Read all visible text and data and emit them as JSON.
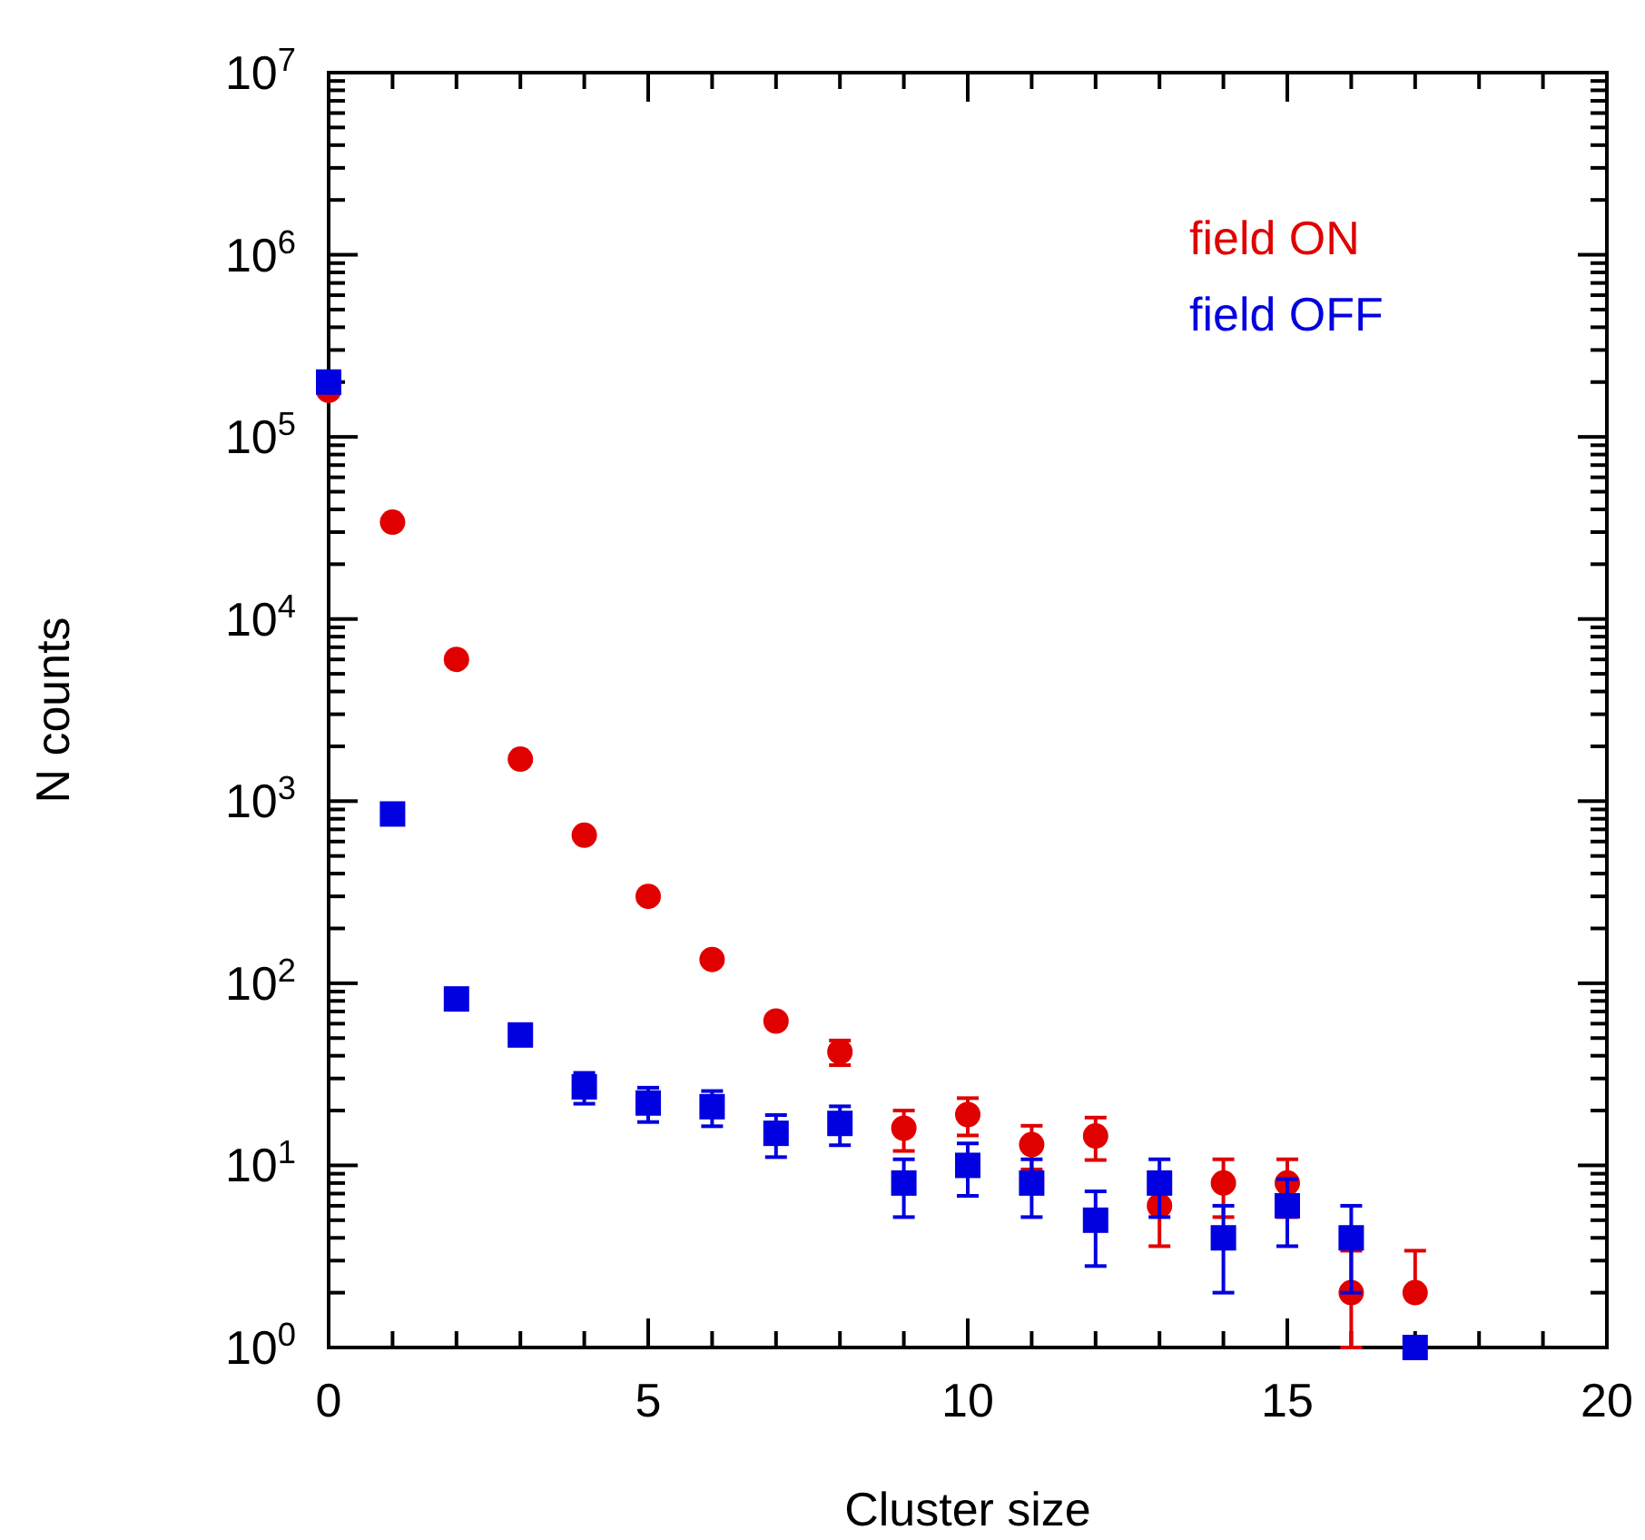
{
  "chart_data": {
    "type": "scatter",
    "xlabel": "Cluster size",
    "ylabel": "N counts",
    "log": "y",
    "legend": "top right",
    "grid": false,
    "xlim": [
      0,
      20
    ],
    "xticks": [
      0,
      {
        "value": 1,
        "label": null
      },
      {
        "value": 2,
        "label": null
      },
      {
        "value": 3,
        "label": null
      },
      {
        "value": 4,
        "label": null
      },
      5,
      {
        "value": 6,
        "label": null
      },
      {
        "value": 7,
        "label": null
      },
      {
        "value": 8,
        "label": null
      },
      {
        "value": 9,
        "label": null
      },
      10,
      {
        "value": 11,
        "label": null
      },
      {
        "value": 12,
        "label": null
      },
      {
        "value": 13,
        "label": null
      },
      {
        "value": 14,
        "label": null
      },
      15,
      {
        "value": 16,
        "label": null
      },
      {
        "value": 17,
        "label": null
      },
      {
        "value": 18,
        "label": null
      },
      {
        "value": 19,
        "label": null
      },
      20
    ],
    "ylim": [
      1,
      10000000
    ],
    "yticks": [
      {
        "value": 1,
        "label": "10$^{0}$"
      },
      {
        "value": 10,
        "label": "10$^{1}$"
      },
      {
        "value": 100,
        "label": "10$^{2}$"
      },
      {
        "value": 1000,
        "label": "10$^{3}$"
      },
      {
        "value": 10000,
        "label": "10$^{4}$"
      },
      {
        "value": 100000,
        "label": "10$^{5}$"
      },
      {
        "value": 1000000,
        "label": "10$^{6}$"
      },
      {
        "value": 10000000,
        "label": "10$^{7}$"
      },
      {
        "value": 2,
        "label": null
      },
      {
        "value": 3,
        "label": null
      },
      {
        "value": 4,
        "label": null
      },
      {
        "value": 5,
        "label": null
      },
      {
        "value": 6,
        "label": null
      },
      {
        "value": 7,
        "label": null
      },
      {
        "value": 8,
        "label": null
      },
      {
        "value": 9,
        "label": null
      },
      {
        "value": 20,
        "label": null
      },
      {
        "value": 30,
        "label": null
      },
      {
        "value": 40,
        "label": null
      },
      {
        "value": 50,
        "label": null
      },
      {
        "value": 60,
        "label": null
      },
      {
        "value": 70,
        "label": null
      },
      {
        "value": 80,
        "label": null
      },
      {
        "value": 90,
        "label": null
      },
      {
        "value": 200,
        "label": null
      },
      {
        "value": 300,
        "label": null
      },
      {
        "value": 400,
        "label": null
      },
      {
        "value": 500,
        "label": null
      },
      {
        "value": 600,
        "label": null
      },
      {
        "value": 700,
        "label": null
      },
      {
        "value": 800,
        "label": null
      },
      {
        "value": 900,
        "label": null
      },
      {
        "value": 2000,
        "label": null
      },
      {
        "value": 3000,
        "label": null
      },
      {
        "value": 4000,
        "label": null
      },
      {
        "value": 5000,
        "label": null
      },
      {
        "value": 6000,
        "label": null
      },
      {
        "value": 7000,
        "label": null
      },
      {
        "value": 8000,
        "label": null
      },
      {
        "value": 9000,
        "label": null
      },
      {
        "value": 20000,
        "label": null
      },
      {
        "value": 30000,
        "label": null
      },
      {
        "value": 40000,
        "label": null
      },
      {
        "value": 50000,
        "label": null
      },
      {
        "value": 60000,
        "label": null
      },
      {
        "value": 70000,
        "label": null
      },
      {
        "value": 80000,
        "label": null
      },
      {
        "value": 90000,
        "label": null
      },
      {
        "value": 200000,
        "label": null
      },
      {
        "value": 300000,
        "label": null
      },
      {
        "value": 400000,
        "label": null
      },
      {
        "value": 500000,
        "label": null
      },
      {
        "value": 600000,
        "label": null
      },
      {
        "value": 700000,
        "label": null
      },
      {
        "value": 800000,
        "label": null
      },
      {
        "value": 900000,
        "label": null
      },
      {
        "value": 2000000,
        "label": null
      },
      {
        "value": 3000000,
        "label": null
      },
      {
        "value": 4000000,
        "label": null
      },
      {
        "value": 5000000,
        "label": null
      },
      {
        "value": 6000000,
        "label": null
      },
      {
        "value": 7000000,
        "label": null
      },
      {
        "value": 8000000,
        "label": null
      },
      {
        "value": 9000000,
        "label": null
      }
    ],
    "x": [
      0,
      1,
      2,
      3,
      4,
      5,
      6,
      7,
      8,
      9,
      10,
      11,
      12,
      13,
      14,
      15,
      16,
      17
    ],
    "series": [
      {
        "name": "field ON",
        "color": "#e00000",
        "marker": "circle",
        "values": [
          180000,
          34000,
          6000,
          1700,
          650,
          300,
          135,
          62,
          42,
          16,
          19,
          13,
          14.5,
          6,
          8,
          8,
          2,
          2
        ],
        "errors": [
          null,
          null,
          null,
          null,
          null,
          null,
          null,
          null,
          6.5,
          4,
          4.4,
          3.5,
          3.8,
          2.4,
          2.8,
          2.8,
          [
            1,
            3.4
          ],
          [
            2,
            3.4
          ]
        ]
      },
      {
        "name": "field OFF",
        "color": "#0000e0",
        "marker": "square",
        "values": [
          200000,
          850,
          82,
          52,
          27,
          22,
          21,
          15,
          17,
          8,
          10,
          8,
          5,
          8,
          4,
          6,
          4,
          1
        ],
        "errors": [
          null,
          null,
          null,
          null,
          5.2,
          4.7,
          4.6,
          3.9,
          4.1,
          2.8,
          3.2,
          2.8,
          2.2,
          2.8,
          2,
          2.4,
          2,
          null
        ]
      }
    ]
  }
}
